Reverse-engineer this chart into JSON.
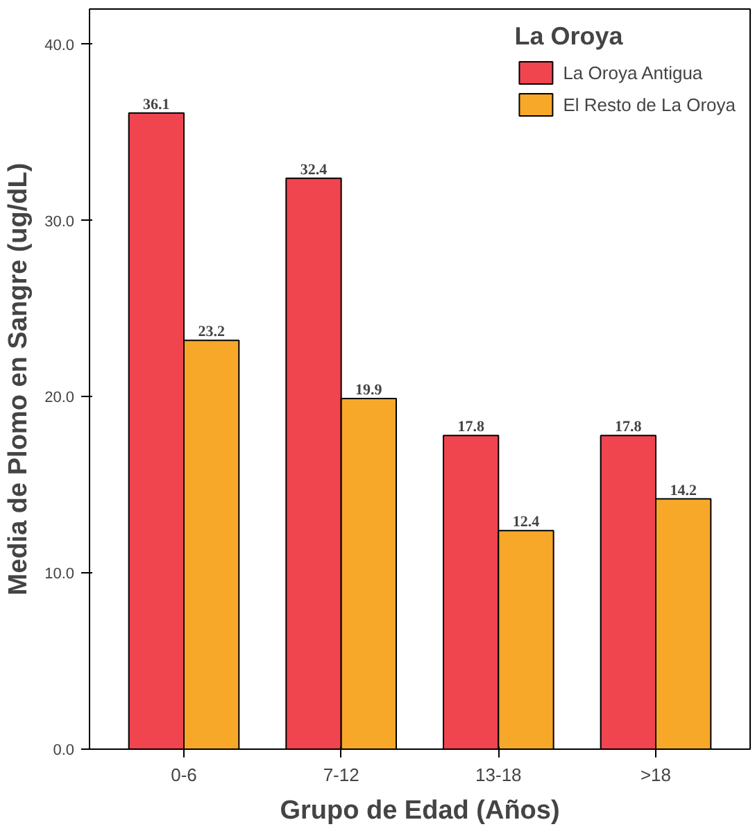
{
  "chart_data": {
    "type": "bar",
    "xlabel": "Grupo de Edad (Años)",
    "ylabel": "Media de Plomo en Sangre (ug/dL)",
    "legend_title": "La Oroya",
    "categories": [
      "0-6",
      "7-12",
      "13-18",
      ">18"
    ],
    "series": [
      {
        "name": "La Oroya Antigua",
        "color": "#f0444f",
        "values": [
          36.1,
          32.4,
          17.8,
          17.8
        ]
      },
      {
        "name": "El Resto de La Oroya",
        "color": "#f7a829",
        "values": [
          23.2,
          19.9,
          12.4,
          14.2
        ]
      }
    ],
    "ylim": [
      0,
      42
    ],
    "yticks": [
      {
        "value": 0,
        "label": "0.0"
      },
      {
        "value": 10,
        "label": "10.0"
      },
      {
        "value": 20,
        "label": "20.0"
      },
      {
        "value": 30,
        "label": "30.0"
      },
      {
        "value": 40,
        "label": "40.0"
      }
    ],
    "data_labels": true,
    "grid": false,
    "legend": "top right"
  }
}
